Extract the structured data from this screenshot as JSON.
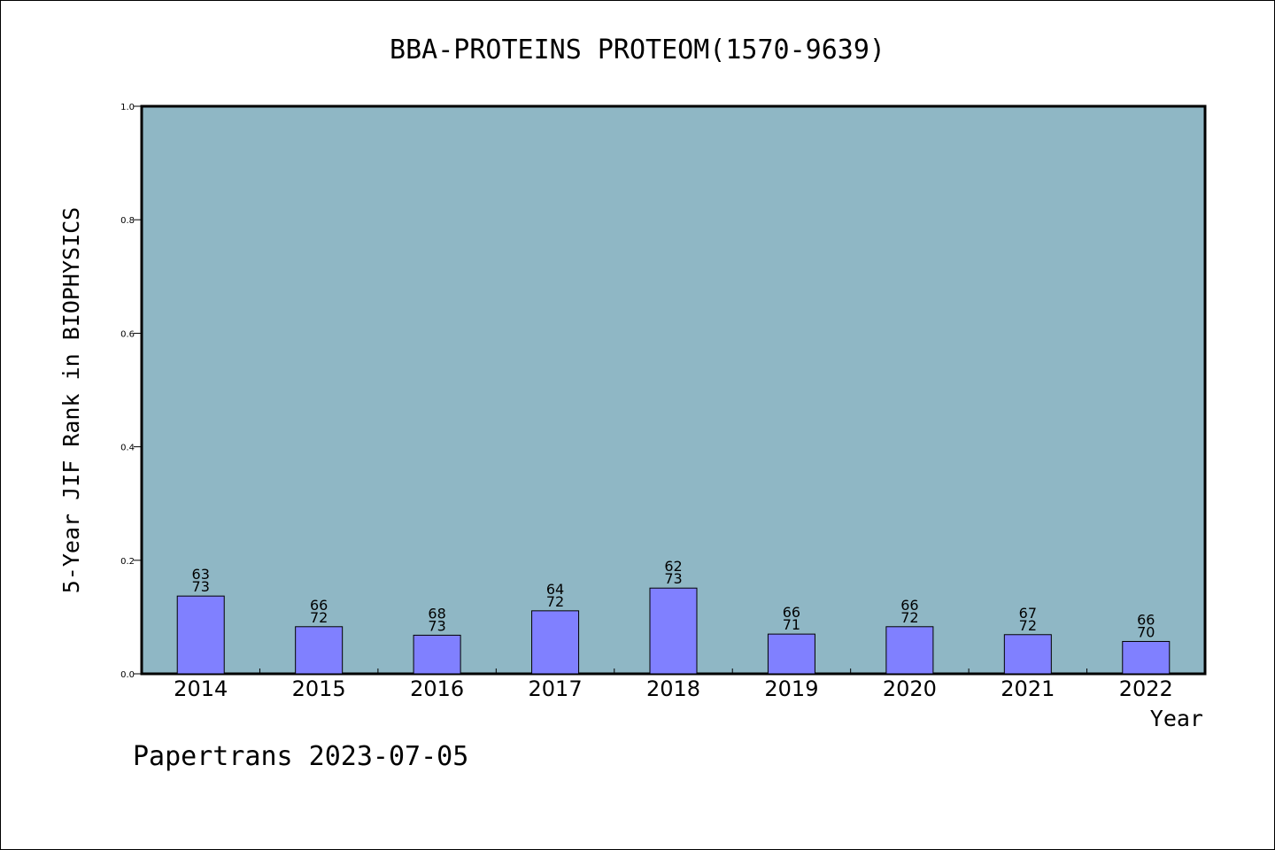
{
  "chart_data": {
    "type": "bar",
    "title": "BBA-PROTEINS PROTEOM(1570-9639)",
    "xlabel": "Year",
    "ylabel": "5-Year JIF Rank in BIOPHYSICS",
    "ylim": [
      0,
      1.0
    ],
    "yticks": [
      "0.0",
      "0.2",
      "0.4",
      "0.6",
      "0.8",
      "1.0"
    ],
    "categories": [
      "2014",
      "2015",
      "2016",
      "2017",
      "2018",
      "2019",
      "2020",
      "2021",
      "2022"
    ],
    "values": [
      0.137,
      0.083,
      0.068,
      0.111,
      0.151,
      0.07,
      0.083,
      0.069,
      0.057
    ],
    "rank_labels": [
      [
        "63",
        "73"
      ],
      [
        "66",
        "72"
      ],
      [
        "68",
        "73"
      ],
      [
        "64",
        "72"
      ],
      [
        "62",
        "73"
      ],
      [
        "66",
        "71"
      ],
      [
        "66",
        "72"
      ],
      [
        "67",
        "72"
      ],
      [
        "66",
        "70"
      ]
    ],
    "grid": false,
    "legend": "none",
    "colors": {
      "plot_background": "#8fb7c5",
      "bar_fill": "#8080ff",
      "bar_stroke": "#000000"
    }
  },
  "footer": {
    "text": "Papertrans 2023-07-05"
  }
}
